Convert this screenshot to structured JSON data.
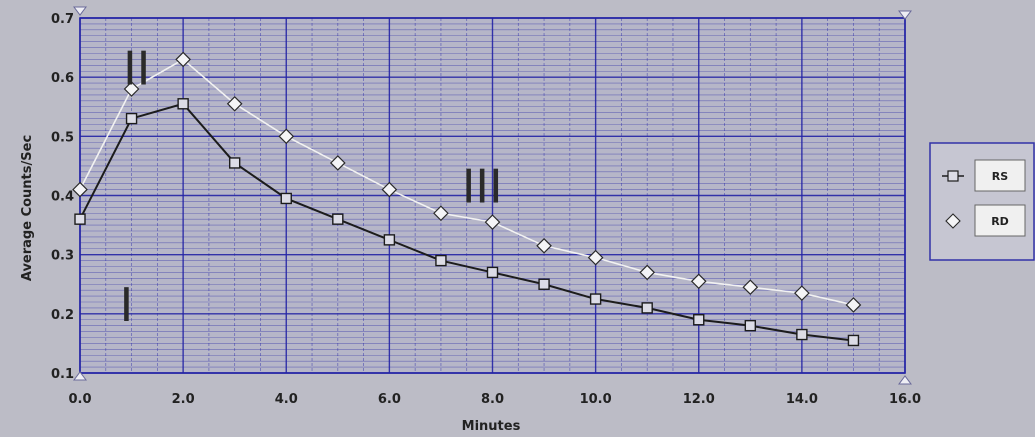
{
  "chart_data": {
    "type": "line",
    "xlabel": "Minutes",
    "ylabel": "Average Counts/Sec",
    "xlim": [
      0,
      16
    ],
    "ylim": [
      0.1,
      0.7
    ],
    "grid": true,
    "legend_position": "right",
    "x_ticks": [
      "0.0",
      "2.0",
      "4.0",
      "6.0",
      "8.0",
      "10.0",
      "12.0",
      "14.0",
      "16.0"
    ],
    "y_ticks": [
      "0.1",
      "0.2",
      "0.3",
      "0.4",
      "0.5",
      "0.6",
      "0.7"
    ],
    "series": [
      {
        "name": "RS",
        "marker": "square",
        "color": "#1c1c1c",
        "x": [
          0,
          1,
          2,
          3,
          4,
          5,
          6,
          7,
          8,
          9,
          10,
          11,
          12,
          13,
          14,
          15
        ],
        "values": [
          0.36,
          0.53,
          0.555,
          0.455,
          0.395,
          0.36,
          0.325,
          0.29,
          0.27,
          0.25,
          0.225,
          0.21,
          0.19,
          0.18,
          0.165,
          0.155
        ]
      },
      {
        "name": "RD",
        "marker": "diamond",
        "color": "#f2f2f2",
        "x": [
          0,
          1,
          2,
          3,
          4,
          5,
          6,
          7,
          8,
          9,
          10,
          11,
          12,
          13,
          14,
          15
        ],
        "values": [
          0.41,
          0.58,
          0.63,
          0.555,
          0.5,
          0.455,
          0.41,
          0.37,
          0.355,
          0.315,
          0.295,
          0.27,
          0.255,
          0.245,
          0.235,
          0.215
        ]
      }
    ],
    "annotations": [
      {
        "text": "I",
        "x": 0.9,
        "y": 0.215
      },
      {
        "text": "II",
        "x": 1.1,
        "y": 0.615
      },
      {
        "text": "III",
        "x": 7.8,
        "y": 0.415
      }
    ]
  },
  "colors": {
    "background": "#bcbcc6",
    "grid": "#2424a6",
    "rs_line": "#1c1c1c",
    "rd_line": "#f2f2f2"
  }
}
